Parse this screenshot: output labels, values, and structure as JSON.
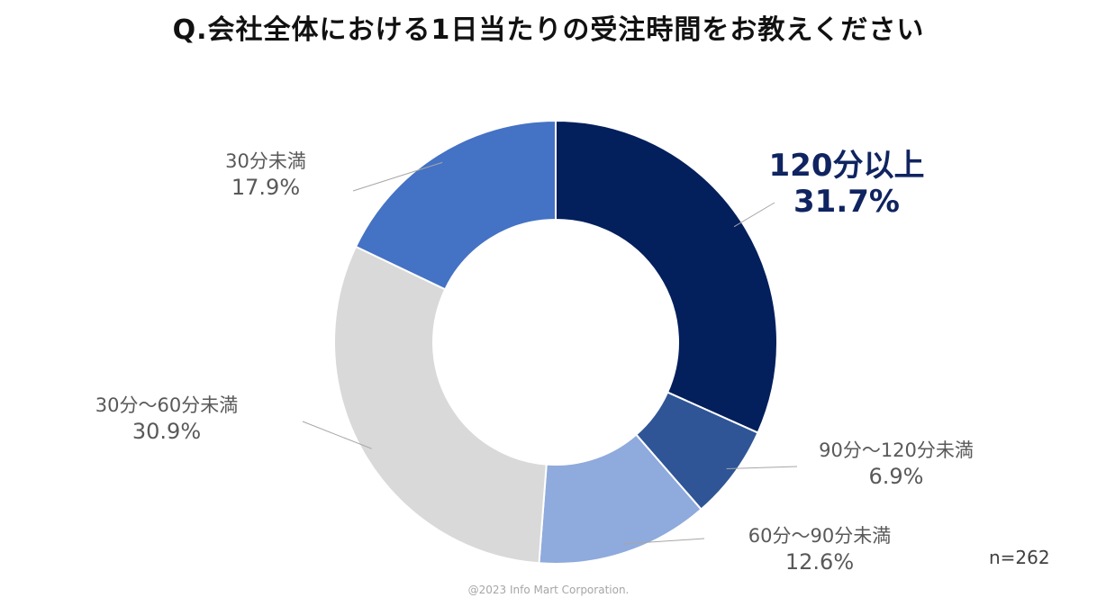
{
  "chart_data": {
    "type": "pie",
    "variant": "donut",
    "title": "Q.会社全体における1日当たりの受注時間をお教えください",
    "slices": [
      {
        "label": "120分以上",
        "value": 31.7,
        "value_label": "31.7%",
        "color": "#031f5c",
        "highlight": true
      },
      {
        "label": "90分～120分未満",
        "value": 6.9,
        "value_label": "6.9%",
        "color": "#2f5597",
        "highlight": false
      },
      {
        "label": "60分～90分未満",
        "value": 12.6,
        "value_label": "12.6%",
        "color": "#8faadc",
        "highlight": false
      },
      {
        "label": "30分～60分未満",
        "value": 30.9,
        "value_label": "30.9%",
        "color": "#d9d9d9",
        "highlight": false
      },
      {
        "label": "30分未満",
        "value": 17.9,
        "value_label": "17.9%",
        "color": "#4472c4",
        "highlight": false
      }
    ],
    "start_angle": "12 o'clock",
    "direction": "clockwise",
    "legend": "none"
  },
  "sample_size": "n=262",
  "copyright": "@2023 Info Mart Corporation."
}
